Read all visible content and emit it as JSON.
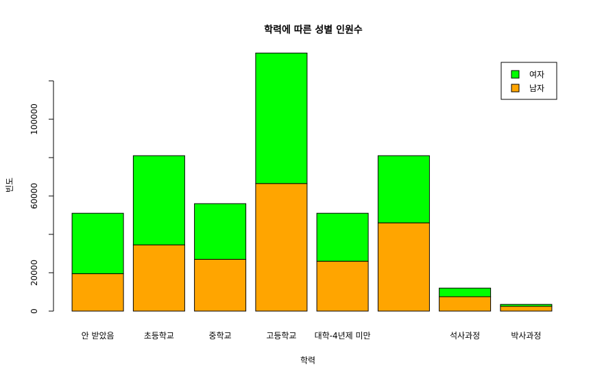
{
  "chart_data": {
    "type": "bar",
    "stacked": true,
    "title": "학력에 따른 성별 인원수",
    "xlabel": "학력",
    "ylabel": "빈도",
    "categories": [
      "안 받았음",
      "초등학교",
      "중학교",
      "고등학교",
      "대학-4년제 미만",
      "",
      "석사과정",
      "박사과정"
    ],
    "series": [
      {
        "name": "남자",
        "color": "#FFA500",
        "values": [
          19500,
          34500,
          27000,
          66500,
          26000,
          46000,
          7500,
          2500
        ]
      },
      {
        "name": "여자",
        "color": "#00FF00",
        "values": [
          31500,
          46500,
          29000,
          68000,
          25000,
          35000,
          4500,
          1000
        ]
      }
    ],
    "ylim": [
      0,
      140000
    ],
    "yticks": [
      0,
      20000,
      60000,
      100000
    ],
    "ytick_marks": [
      0,
      20000,
      40000,
      60000,
      80000,
      100000,
      120000
    ],
    "legend_position": "top-right",
    "legend_order": [
      "여자",
      "남자"
    ],
    "grid": false
  }
}
